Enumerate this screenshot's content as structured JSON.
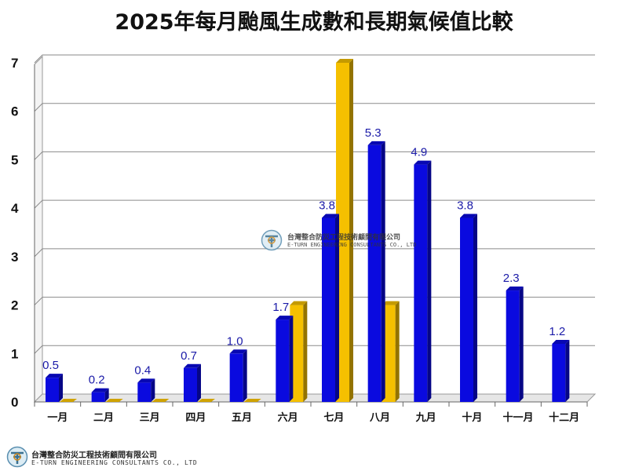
{
  "page": {
    "title": "2025年每月颱風生成數和長期氣候值比較"
  },
  "logo": {
    "name_cn": "台灣整合防災工程技術顧問有限公司",
    "name_en": "E-TURN ENGINEERING CONSULTANTS CO., LTD"
  },
  "colors": {
    "series_2025": "#0a0adf",
    "series_climate": "#f5c000",
    "label": "#1a1aa8"
  },
  "chart_data": {
    "type": "bar",
    "title": "2025年每月颱風生成數和長期氣候值比較",
    "categories": [
      "一月",
      "二月",
      "三月",
      "四月",
      "五月",
      "六月",
      "七月",
      "八月",
      "九月",
      "十月",
      "十一月",
      "十二月"
    ],
    "series": [
      {
        "name": "2025",
        "values": [
          0.5,
          0.2,
          0.4,
          0.7,
          1.0,
          1.7,
          3.8,
          5.3,
          4.9,
          3.8,
          2.3,
          1.2
        ],
        "labels": [
          "0.5",
          "0.2",
          "0.4",
          "0.7",
          "1.0",
          "1.7",
          "3.8",
          "5.3",
          "4.9",
          "3.8",
          "2.3",
          "1.2"
        ]
      },
      {
        "name": "長期氣候值",
        "values": [
          0,
          0,
          0,
          0,
          0,
          2,
          7,
          2,
          null,
          null,
          null,
          null
        ]
      }
    ],
    "ylim": [
      0,
      7
    ],
    "yticks": [
      "0",
      "1",
      "2",
      "3",
      "4",
      "5",
      "6",
      "7"
    ],
    "grid": true,
    "legend": "none"
  }
}
